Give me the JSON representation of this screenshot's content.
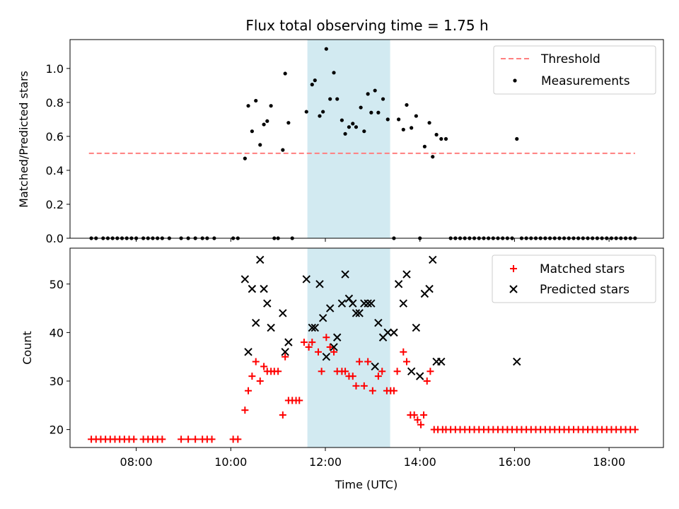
{
  "chart_data": {
    "title": "Flux total observing time = 1.75 h",
    "xlabel": "Time (UTC)",
    "x_unit": "hours UTC",
    "xlim": [
      6.6,
      19.15
    ],
    "xticks": [
      8,
      10,
      12,
      14,
      16,
      18
    ],
    "xtick_labels": [
      "08:00",
      "10:00",
      "12:00",
      "14:00",
      "16:00",
      "18:00"
    ],
    "shaded_interval": [
      11.62,
      13.37
    ],
    "shaded_color": "#add8e6",
    "panels": [
      {
        "type": "scatter",
        "ylabel": "Matched/Predicted stars",
        "ylim": [
          0,
          1.17
        ],
        "yticks": [
          0.0,
          0.2,
          0.4,
          0.6,
          0.8,
          1.0
        ],
        "ytick_labels": [
          "0.0",
          "0.2",
          "0.4",
          "0.6",
          "0.8",
          "1.0"
        ],
        "legend_position": "top-right",
        "threshold": {
          "name": "Threshold",
          "y": 0.5,
          "x_range": [
            7.0,
            18.55
          ],
          "color": "#ff7f7f"
        },
        "series": [
          {
            "name": "Measurements",
            "marker": "dot",
            "color": "#000000",
            "x": [
              7.05,
              7.15,
              7.3,
              7.4,
              7.5,
              7.6,
              7.7,
              7.8,
              7.9,
              8.0,
              8.15,
              8.25,
              8.35,
              8.45,
              8.55,
              8.7,
              8.95,
              9.1,
              9.25,
              9.4,
              9.5,
              9.65,
              10.05,
              10.15,
              10.3,
              10.37,
              10.45,
              10.53,
              10.62,
              10.7,
              10.77,
              10.85,
              10.92,
              11.0,
              11.1,
              11.15,
              11.22,
              11.3,
              11.6,
              11.72,
              11.78,
              11.88,
              11.95,
              12.02,
              12.1,
              12.18,
              12.25,
              12.35,
              12.42,
              12.5,
              12.58,
              12.65,
              12.75,
              12.82,
              12.9,
              12.97,
              13.05,
              13.12,
              13.22,
              13.32,
              13.45,
              13.55,
              13.65,
              13.72,
              13.82,
              13.92,
              14.0,
              14.1,
              14.2,
              14.27,
              14.35,
              14.45,
              14.55,
              14.65,
              14.75,
              14.85,
              14.95,
              15.05,
              15.15,
              15.25,
              15.35,
              15.45,
              15.55,
              15.65,
              15.75,
              15.85,
              15.95,
              16.05,
              16.15,
              16.25,
              16.35,
              16.45,
              16.55,
              16.65,
              16.75,
              16.85,
              16.95,
              17.05,
              17.15,
              17.25,
              17.35,
              17.45,
              17.55,
              17.65,
              17.75,
              17.85,
              17.95,
              18.05,
              18.15,
              18.25,
              18.35,
              18.45,
              18.55
            ],
            "y": [
              0,
              0,
              0,
              0,
              0,
              0,
              0,
              0,
              0,
              0,
              0,
              0,
              0,
              0,
              0,
              0,
              0,
              0,
              0,
              0,
              0,
              0,
              0,
              0,
              0.47,
              0.78,
              0.63,
              0.81,
              0.55,
              0.67,
              0.69,
              0.78,
              0,
              0,
              0.52,
              0.97,
              0.68,
              0,
              0.745,
              0.905,
              0.93,
              0.72,
              0.745,
              1.115,
              0.82,
              0.975,
              0.82,
              0.695,
              0.615,
              0.655,
              0.675,
              0.655,
              0.77,
              0.63,
              0.85,
              0.74,
              0.87,
              0.74,
              0.82,
              0.7,
              0,
              0.7,
              0.64,
              0.785,
              0.65,
              0.72,
              0,
              0.54,
              0.68,
              0.48,
              0.61,
              0.585,
              0.585,
              0,
              0,
              0,
              0,
              0,
              0,
              0,
              0,
              0,
              0,
              0,
              0,
              0,
              0,
              0.585,
              0,
              0,
              0,
              0,
              0,
              0,
              0,
              0,
              0,
              0,
              0,
              0,
              0,
              0,
              0,
              0,
              0,
              0,
              0,
              0,
              0,
              0,
              0,
              0,
              0
            ]
          }
        ]
      },
      {
        "type": "scatter",
        "ylabel": "Count",
        "ylim": [
          16.3,
          57.4
        ],
        "yticks": [
          20,
          30,
          40,
          50
        ],
        "ytick_labels": [
          "20",
          "30",
          "40",
          "50"
        ],
        "legend_position": "top-right",
        "series": [
          {
            "name": "Matched stars",
            "marker": "plus",
            "color": "#ff0000",
            "x": [
              7.05,
              7.15,
              7.25,
              7.35,
              7.45,
              7.55,
              7.65,
              7.75,
              7.85,
              7.95,
              8.15,
              8.25,
              8.35,
              8.45,
              8.55,
              8.95,
              9.1,
              9.25,
              9.4,
              9.5,
              9.6,
              10.05,
              10.15,
              10.3,
              10.37,
              10.45,
              10.53,
              10.62,
              10.7,
              10.77,
              10.85,
              10.92,
              11.0,
              11.1,
              11.15,
              11.22,
              11.3,
              11.38,
              11.45,
              11.55,
              11.65,
              11.72,
              11.85,
              11.92,
              12.02,
              12.1,
              12.18,
              12.25,
              12.35,
              12.42,
              12.5,
              12.58,
              12.65,
              12.72,
              12.82,
              12.9,
              13.0,
              13.12,
              13.2,
              13.3,
              13.38,
              13.45,
              13.52,
              13.65,
              13.72,
              13.8,
              13.88,
              13.95,
              14.02,
              14.08,
              14.15,
              14.22,
              14.3,
              14.38,
              14.48,
              14.55,
              14.65,
              14.75,
              14.85,
              14.95,
              15.05,
              15.15,
              15.25,
              15.35,
              15.45,
              15.55,
              15.65,
              15.75,
              15.85,
              15.95,
              16.05,
              16.15,
              16.25,
              16.35,
              16.45,
              16.55,
              16.65,
              16.75,
              16.85,
              16.95,
              17.05,
              17.15,
              17.25,
              17.35,
              17.45,
              17.55,
              17.65,
              17.75,
              17.85,
              17.95,
              18.05,
              18.15,
              18.25,
              18.35,
              18.45,
              18.55
            ],
            "y": [
              18,
              18,
              18,
              18,
              18,
              18,
              18,
              18,
              18,
              18,
              18,
              18,
              18,
              18,
              18,
              18,
              18,
              18,
              18,
              18,
              18,
              18,
              18,
              24,
              28,
              31,
              34,
              30,
              33,
              32,
              32,
              32,
              32,
              23,
              35,
              26,
              26,
              26,
              26,
              38,
              37,
              38,
              36,
              32,
              39,
              37,
              36,
              32,
              32,
              32,
              31,
              31,
              29,
              34,
              29,
              34,
              28,
              31,
              32,
              28,
              28,
              28,
              32,
              36,
              34,
              23,
              23,
              22,
              21,
              23,
              30,
              32,
              20,
              20,
              20,
              20,
              20,
              20,
              20,
              20,
              20,
              20,
              20,
              20,
              20,
              20,
              20,
              20,
              20,
              20,
              20,
              20,
              20,
              20,
              20,
              20,
              20,
              20,
              20,
              20,
              20,
              20,
              20,
              20,
              20,
              20,
              20,
              20,
              20,
              20,
              20,
              20,
              20,
              20,
              20,
              20
            ]
          },
          {
            "name": "Predicted stars",
            "marker": "x",
            "color": "#000000",
            "x": [
              10.3,
              10.37,
              10.45,
              10.53,
              10.62,
              10.7,
              10.77,
              10.85,
              11.1,
              11.15,
              11.22,
              11.6,
              11.72,
              11.78,
              11.88,
              11.95,
              12.02,
              12.1,
              12.18,
              12.25,
              12.35,
              12.42,
              12.5,
              12.58,
              12.65,
              12.72,
              12.82,
              12.9,
              12.97,
              13.05,
              13.12,
              13.22,
              13.32,
              13.45,
              13.55,
              13.65,
              13.72,
              13.82,
              13.92,
              14.0,
              14.1,
              14.2,
              14.27,
              14.35,
              14.45,
              16.05
            ],
            "y": [
              51,
              36,
              49,
              42,
              55,
              49,
              46,
              41,
              44,
              36,
              38,
              51,
              41,
              41,
              50,
              43,
              35,
              45,
              37,
              39,
              46,
              52,
              47,
              46,
              44,
              44,
              46,
              46,
              46,
              33,
              42,
              39,
              40,
              40,
              50,
              46,
              52,
              32,
              41,
              31,
              48,
              49,
              55,
              34,
              34,
              34
            ]
          }
        ]
      }
    ]
  }
}
